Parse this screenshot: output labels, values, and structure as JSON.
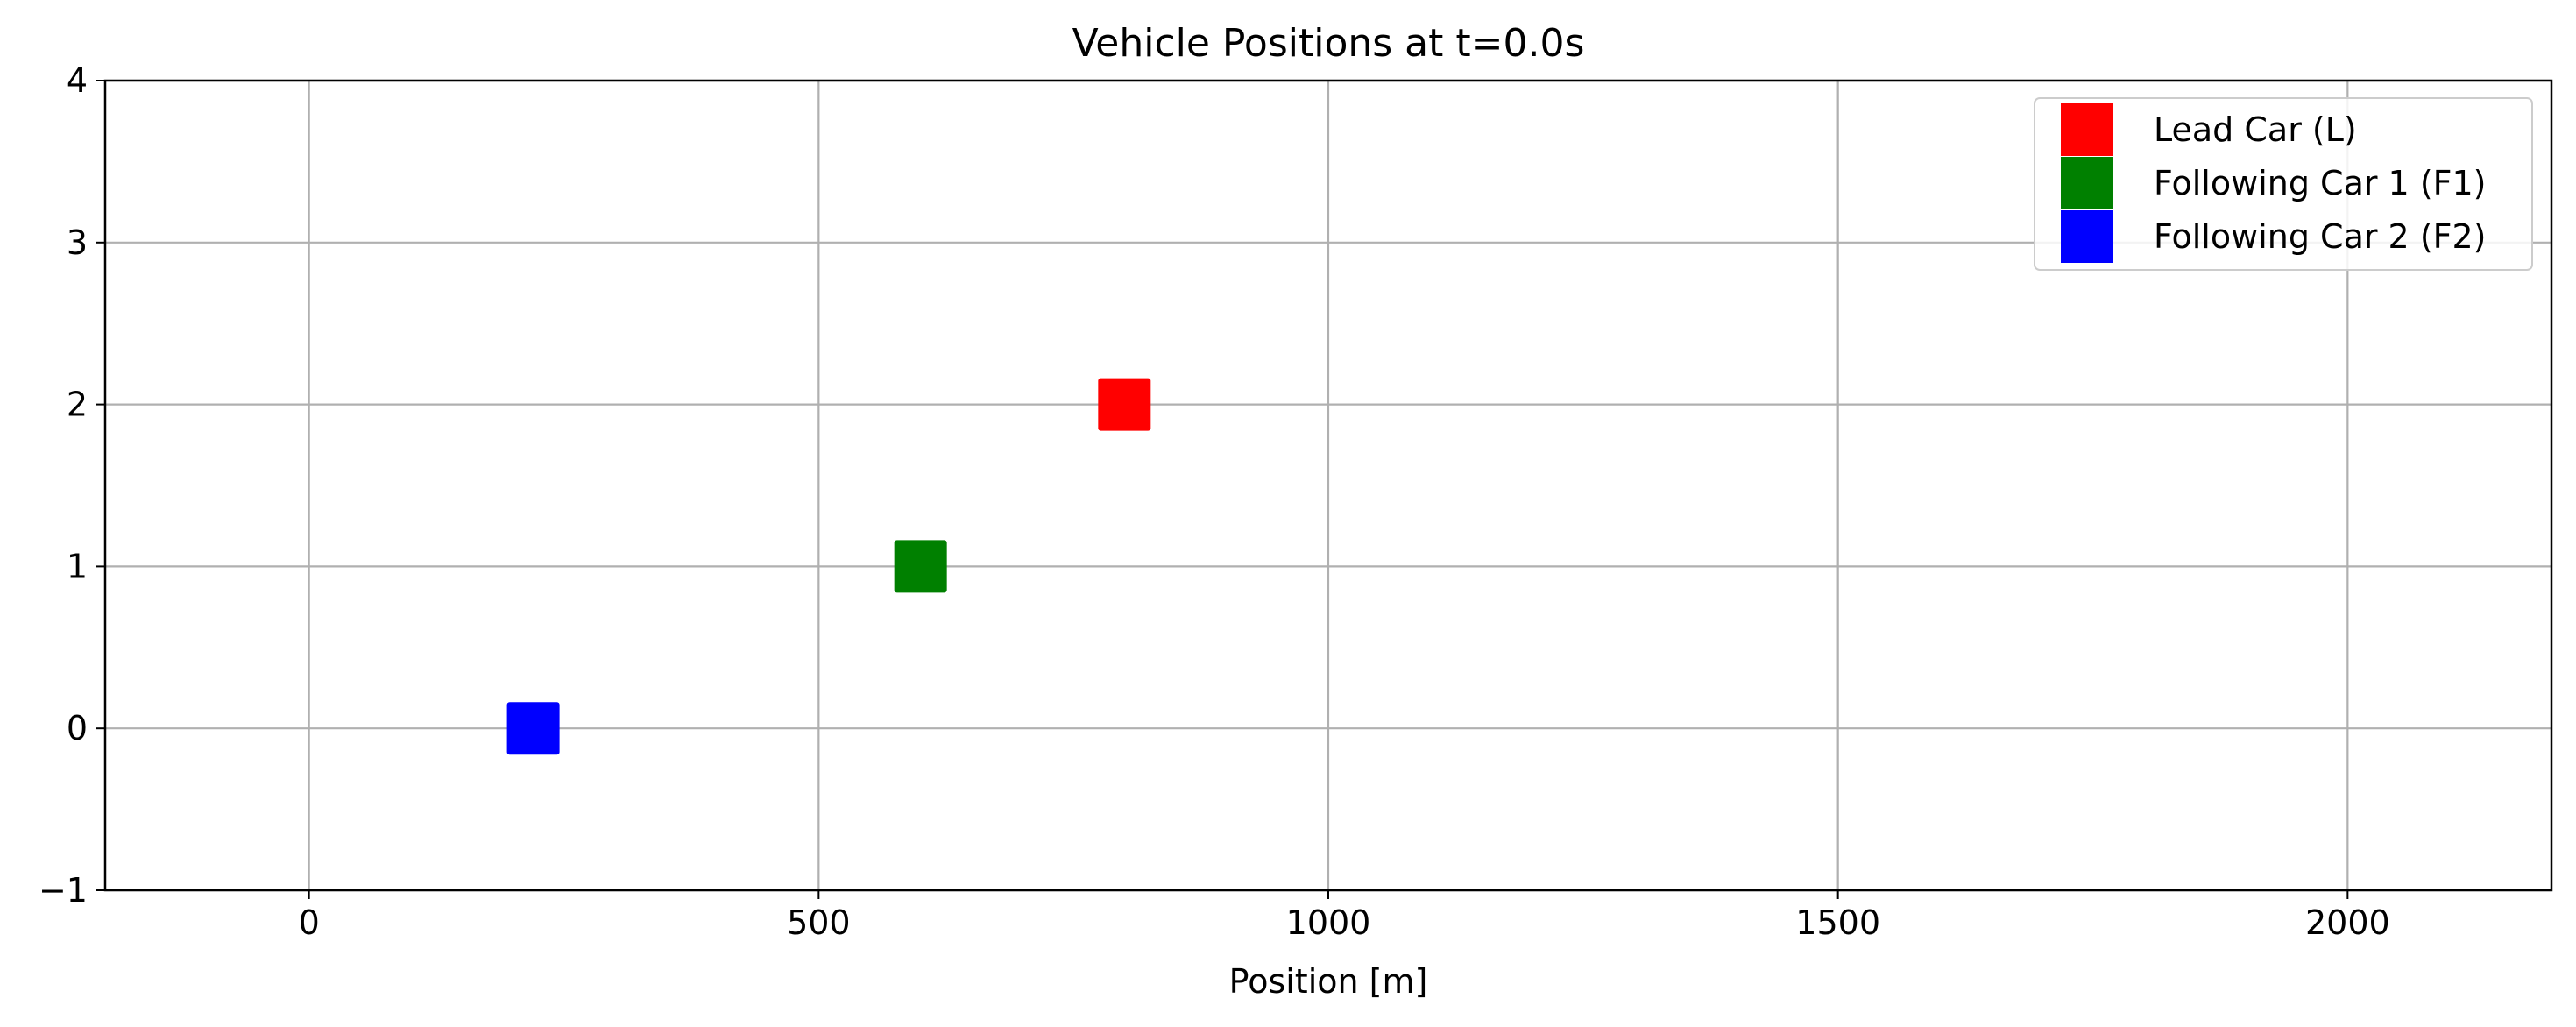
{
  "chart_data": {
    "type": "scatter",
    "title": "Vehicle Positions at t=0.0s",
    "xlabel": "Position [m]",
    "ylabel": "",
    "xlim": [
      -200,
      2200
    ],
    "ylim": [
      -1,
      4
    ],
    "xticks": [
      0,
      500,
      1000,
      1500,
      2000
    ],
    "yticks": [
      -1,
      0,
      1,
      2,
      3,
      4
    ],
    "xtick_labels": [
      "0",
      "500",
      "1000",
      "1500",
      "2000"
    ],
    "ytick_labels": [
      "−1",
      "0",
      "1",
      "2",
      "3",
      "4"
    ],
    "grid": true,
    "legend_position": "top-right",
    "marker": "square",
    "series": [
      {
        "name": "Lead Car (L)",
        "color": "#ff0000",
        "x": [
          800
        ],
        "y": [
          2
        ]
      },
      {
        "name": "Following Car 1 (F1)",
        "color": "#008000",
        "x": [
          600
        ],
        "y": [
          1
        ]
      },
      {
        "name": "Following Car 2 (F2)",
        "color": "#0000ff",
        "x": [
          220
        ],
        "y": [
          0
        ]
      }
    ]
  }
}
